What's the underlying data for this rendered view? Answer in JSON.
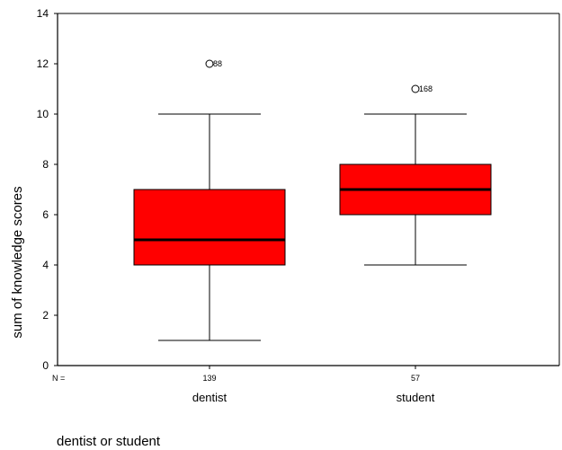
{
  "chart_data": {
    "type": "box",
    "ylabel": "sum of knowledge scores",
    "xlabel": "dentist or student",
    "ylim": [
      0,
      14
    ],
    "yticks": [
      0,
      2,
      4,
      6,
      8,
      10,
      12,
      14
    ],
    "n_prefix": "N =",
    "box_color": "#ff0000",
    "groups": [
      {
        "category": "dentist",
        "n": "139",
        "whisker_low": 1,
        "q1": 4,
        "median": 5,
        "q3": 7,
        "whisker_high": 10,
        "outliers": [
          {
            "value": 12,
            "label": "88"
          }
        ]
      },
      {
        "category": "student",
        "n": "57",
        "whisker_low": 4,
        "q1": 6,
        "median": 7,
        "q3": 8,
        "whisker_high": 10,
        "outliers": [
          {
            "value": 11,
            "label": "168"
          }
        ]
      }
    ]
  }
}
